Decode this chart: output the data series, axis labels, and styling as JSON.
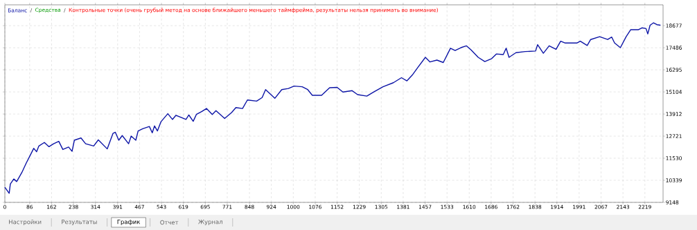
{
  "chart_data": {
    "type": "line",
    "x": [
      0,
      15,
      19,
      31,
      41,
      59,
      74,
      90,
      100,
      110,
      118,
      137,
      153,
      169,
      187,
      201,
      221,
      233,
      241,
      264,
      280,
      308,
      324,
      355,
      375,
      383,
      395,
      407,
      429,
      438,
      454,
      462,
      478,
      501,
      511,
      519,
      529,
      541,
      565,
      581,
      593,
      628,
      638,
      653,
      664,
      683,
      699,
      719,
      732,
      762,
      786,
      801,
      824,
      841,
      873,
      892,
      904,
      936,
      960,
      983,
      1003,
      1031,
      1050,
      1066,
      1098,
      1126,
      1152,
      1172,
      1204,
      1223,
      1255,
      1279,
      1311,
      1347,
      1375,
      1394,
      1414,
      1434,
      1458,
      1474,
      1498,
      1520,
      1545,
      1561,
      1581,
      1600,
      1617,
      1641,
      1664,
      1688,
      1704,
      1728,
      1738,
      1748,
      1772,
      1804,
      1840,
      1847,
      1867,
      1887,
      1911,
      1927,
      1943,
      1983,
      1995,
      2019,
      2031,
      2062,
      2090,
      2104,
      2114,
      2134,
      2154,
      2170,
      2197,
      2209,
      2223,
      2229,
      2237,
      2249,
      2261,
      2273
    ],
    "series": [
      {
        "name": "Баланс",
        "color": "#0c14a6",
        "values": [
          9960,
          9640,
          10140,
          10410,
          10270,
          10760,
          11260,
          11750,
          12060,
          11880,
          12190,
          12380,
          12150,
          12310,
          12440,
          12000,
          12130,
          11900,
          12500,
          12620,
          12310,
          12190,
          12520,
          12030,
          12870,
          12930,
          12500,
          12750,
          12310,
          12720,
          12500,
          13000,
          13120,
          13240,
          12900,
          13270,
          13000,
          13490,
          13930,
          13620,
          13840,
          13620,
          13860,
          13520,
          13890,
          14050,
          14210,
          13890,
          14090,
          13670,
          13990,
          14260,
          14210,
          14670,
          14610,
          14800,
          15230,
          14760,
          15230,
          15290,
          15420,
          15380,
          15230,
          14920,
          14920,
          15330,
          15350,
          15100,
          15170,
          14960,
          14880,
          15100,
          15380,
          15600,
          15870,
          15700,
          16040,
          16470,
          16970,
          16720,
          16820,
          16690,
          17460,
          17340,
          17490,
          17590,
          17360,
          16970,
          16740,
          16900,
          17150,
          17120,
          17460,
          16970,
          17220,
          17280,
          17310,
          17650,
          17190,
          17590,
          17400,
          17840,
          17740,
          17740,
          17840,
          17610,
          17930,
          18080,
          17930,
          18060,
          17740,
          17490,
          18080,
          18460,
          18460,
          18560,
          18520,
          18230,
          18700,
          18830,
          18730,
          18700
        ]
      }
    ],
    "xlim": [
      0,
      2282
    ],
    "ylim": [
      9148,
      19800
    ],
    "xticks": [
      0,
      86,
      162,
      238,
      314,
      391,
      467,
      543,
      619,
      695,
      771,
      848,
      924,
      1000,
      1076,
      1152,
      1229,
      1305,
      1381,
      1457,
      1533,
      1610,
      1686,
      1762,
      1838,
      1914,
      1991,
      2067,
      2143,
      2219
    ],
    "yticks": [
      9148,
      10339,
      11530,
      12721,
      13912,
      15104,
      16295,
      17486,
      18677
    ],
    "grid": true,
    "legend": "top left",
    "marker": "none",
    "line_style": "solid",
    "annotations": [
      "/",
      "Средства",
      "/",
      "Контрольные точки (очень грубый метод на основе ближайшего меньшего таймфрейма, результаты нельзя принимать во внимание)",
      "Настройки",
      "Результаты",
      "График",
      "Отчет",
      "Журнал"
    ]
  }
}
